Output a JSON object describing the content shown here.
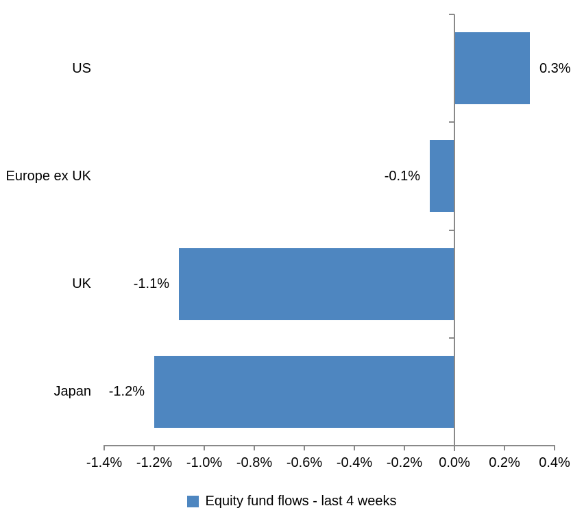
{
  "chart_data": {
    "type": "bar",
    "orientation": "horizontal",
    "title": "",
    "xlabel": "",
    "ylabel": "",
    "categories": [
      "US",
      "Europe ex UK",
      "UK",
      "Japan"
    ],
    "series": [
      {
        "name": "Equity fund flows - last 4 weeks",
        "values": [
          0.3,
          -0.1,
          -1.1,
          -1.2
        ],
        "data_labels": [
          "0.3%",
          "-0.1%",
          "-1.1%",
          "-1.2%"
        ]
      }
    ],
    "xlim": [
      -1.4,
      0.4
    ],
    "x_ticks": [
      -1.4,
      -1.2,
      -1.0,
      -0.8,
      -0.6,
      -0.4,
      -0.2,
      0.0,
      0.2,
      0.4
    ],
    "x_tick_labels": [
      "-1.4%",
      "-1.2%",
      "-1.0%",
      "-0.8%",
      "-0.6%",
      "-0.4%",
      "-0.2%",
      "0.0%",
      "0.2%",
      "0.4%"
    ],
    "grid": false,
    "legend_position": "bottom",
    "colors": {
      "bar": "#4E86C0",
      "axis": "#898989",
      "text": "#000000",
      "background": "#FFFFFF"
    }
  },
  "legend": {
    "label": "Equity fund flows - last 4 weeks"
  }
}
